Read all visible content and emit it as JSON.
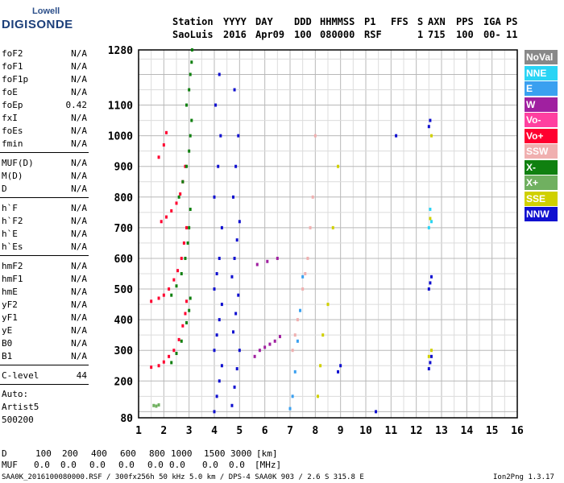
{
  "logo": {
    "line1": "Lowell",
    "line2": "DIGISONDE"
  },
  "header": {
    "labels": [
      "Station",
      "YYYY",
      "DAY",
      "DDD",
      "HHMMSS",
      "P1",
      "FFS",
      "S",
      "AXN",
      "PPS",
      "IGA",
      "PS"
    ],
    "values": [
      "SaoLuis",
      "2016",
      "Apr09",
      "100",
      "080000",
      "RSF",
      "1",
      "715",
      "100",
      "00-",
      "11"
    ]
  },
  "params": [
    {
      "label": "foF2",
      "value": "N/A"
    },
    {
      "label": "foF1",
      "value": "N/A"
    },
    {
      "label": "foF1p",
      "value": "N/A"
    },
    {
      "label": "foE",
      "value": "N/A"
    },
    {
      "label": "foEp",
      "value": "0.42"
    },
    {
      "label": "fxI",
      "value": "N/A"
    },
    {
      "label": "foEs",
      "value": "N/A"
    },
    {
      "label": "fmin",
      "value": "N/A"
    },
    {
      "label": "MUF(D)",
      "value": "N/A"
    },
    {
      "label": "M(D)",
      "value": "N/A"
    },
    {
      "label": "D",
      "value": "N/A"
    },
    {
      "label": "h`F",
      "value": "N/A"
    },
    {
      "label": "h`F2",
      "value": "N/A"
    },
    {
      "label": "h`E",
      "value": "N/A"
    },
    {
      "label": "h`Es",
      "value": "N/A"
    },
    {
      "label": "hmF2",
      "value": "N/A"
    },
    {
      "label": "hmF1",
      "value": "N/A"
    },
    {
      "label": "hmE",
      "value": "N/A"
    },
    {
      "label": "yF2",
      "value": "N/A"
    },
    {
      "label": "yF1",
      "value": "N/A"
    },
    {
      "label": "yE",
      "value": "N/A"
    },
    {
      "label": "B0",
      "value": "N/A"
    },
    {
      "label": "B1",
      "value": "N/A"
    },
    {
      "label": "C-level",
      "value": "44"
    }
  ],
  "auto": {
    "line1": "Auto:",
    "line2": "Artist5",
    "line3": "500200"
  },
  "legend": [
    {
      "label": "NoVal",
      "color": "#888888"
    },
    {
      "label": "NNE",
      "color": "#2ad4f5"
    },
    {
      "label": "E",
      "color": "#3aa0f0"
    },
    {
      "label": "W",
      "color": "#a020a0"
    },
    {
      "label": "Vo-",
      "color": "#ff40a0"
    },
    {
      "label": "Vo+",
      "color": "#ff0030"
    },
    {
      "label": "SSW",
      "color": "#f0b0b0"
    },
    {
      "label": "X-",
      "color": "#108010"
    },
    {
      "label": "X+",
      "color": "#70b060"
    },
    {
      "label": "SSE",
      "color": "#d0d000"
    },
    {
      "label": "NNW",
      "color": "#1010d0"
    }
  ],
  "bottom": {
    "d_label": "D",
    "d_values": [
      "100",
      "200",
      "400",
      "600",
      "800",
      "1000",
      "1500",
      "3000",
      "[km]"
    ],
    "muf_label": "MUF",
    "muf_values": [
      "0.0",
      "0.0",
      "0.0",
      "0.0",
      "0.0",
      "0.0",
      "0.0",
      "0.0",
      "[MHz]"
    ]
  },
  "footer": {
    "left": "SAA0K_2016100080000.RSF / 300fx256h 50 kHz 5.0 km / DPS-4 SAA0K 903 / 2.6 S 315.8 E",
    "right": "Ion2Png 1.3.17"
  },
  "chart_data": {
    "type": "scatter",
    "x_ticks": [
      1,
      2,
      3,
      4,
      5,
      6,
      7,
      8,
      9,
      10,
      11,
      12,
      13,
      14,
      15,
      16
    ],
    "y_ticks": [
      80,
      200,
      300,
      400,
      500,
      600,
      700,
      800,
      900,
      1000,
      1100,
      1280
    ],
    "xlim": [
      1,
      16
    ],
    "ylim": [
      80,
      1280
    ],
    "grid": true,
    "traces": [
      {
        "name": "Vo+",
        "x": [
          1.5,
          1.8,
          2.0,
          2.2,
          2.4,
          2.6,
          2.75,
          2.85,
          2.9
        ],
        "y": [
          245,
          250,
          262,
          280,
          300,
          335,
          380,
          420,
          460
        ]
      },
      {
        "name": "Vo+",
        "x": [
          1.5,
          1.8,
          2.0,
          2.2,
          2.4,
          2.55,
          2.7,
          2.8,
          2.9
        ],
        "y": [
          460,
          470,
          480,
          500,
          530,
          560,
          600,
          650,
          700
        ]
      },
      {
        "name": "Vo+",
        "x": [
          1.9,
          2.1,
          2.3,
          2.5,
          2.65,
          2.75,
          2.85
        ],
        "y": [
          720,
          735,
          755,
          780,
          810,
          850,
          900
        ]
      },
      {
        "name": "Vo+",
        "x": [
          1.8,
          2.0,
          2.1
        ],
        "y": [
          930,
          970,
          1010
        ]
      },
      {
        "name": "X-",
        "x": [
          2.3,
          2.5,
          2.7,
          2.9,
          3.0,
          3.05
        ],
        "y": [
          260,
          290,
          330,
          390,
          430,
          470
        ]
      },
      {
        "name": "X-",
        "x": [
          2.3,
          2.5,
          2.7,
          2.85,
          2.95,
          3.0,
          3.05
        ],
        "y": [
          480,
          510,
          550,
          600,
          650,
          700,
          760
        ]
      },
      {
        "name": "X-",
        "x": [
          2.6,
          2.75,
          2.9,
          3.0,
          3.05,
          3.1
        ],
        "y": [
          800,
          850,
          900,
          950,
          1000,
          1050
        ]
      },
      {
        "name": "X-",
        "x": [
          2.9,
          3.0,
          3.05,
          3.1,
          3.12
        ],
        "y": [
          1100,
          1150,
          1200,
          1240,
          1280
        ]
      },
      {
        "name": "NNW",
        "x": [
          4.0,
          4.1,
          4.2,
          4.3,
          4.0,
          4.1,
          4.2,
          4.3,
          4.0,
          4.1,
          4.2,
          4.3,
          4.0,
          4.15,
          4.25,
          4.05,
          4.2
        ],
        "y": [
          100,
          150,
          200,
          250,
          300,
          350,
          400,
          450,
          500,
          550,
          600,
          700,
          800,
          900,
          1000,
          1100,
          1200
        ]
      },
      {
        "name": "NNW",
        "x": [
          4.7,
          4.8,
          4.9,
          5.0,
          4.75,
          4.85,
          4.95,
          4.7,
          4.8,
          4.9,
          5.0,
          4.75,
          4.85,
          4.95,
          4.8
        ],
        "y": [
          120,
          180,
          240,
          300,
          360,
          420,
          480,
          540,
          600,
          660,
          720,
          800,
          900,
          1000,
          1150
        ]
      },
      {
        "name": "W",
        "x": [
          5.6,
          5.8,
          6.0,
          6.2,
          6.4,
          6.6,
          5.7,
          6.1,
          6.5
        ],
        "y": [
          280,
          300,
          310,
          320,
          330,
          345,
          580,
          590,
          600
        ]
      },
      {
        "name": "SSW",
        "x": [
          7.1,
          7.2,
          7.3,
          7.5,
          7.6,
          7.7,
          7.8,
          7.9,
          8.0
        ],
        "y": [
          300,
          350,
          400,
          500,
          550,
          600,
          700,
          800,
          1000
        ]
      },
      {
        "name": "E",
        "x": [
          7.0,
          7.1,
          7.2,
          7.3,
          7.4,
          7.5
        ],
        "y": [
          110,
          150,
          230,
          330,
          430,
          540
        ]
      },
      {
        "name": "SSE",
        "x": [
          8.1,
          8.2,
          8.3,
          8.5,
          8.7,
          8.9
        ],
        "y": [
          150,
          250,
          350,
          450,
          700,
          900
        ]
      },
      {
        "name": "NNW",
        "x": [
          12.5,
          12.55,
          12.6,
          12.5,
          12.55,
          12.6,
          12.5,
          12.55
        ],
        "y": [
          240,
          260,
          280,
          500,
          520,
          540,
          1030,
          1050
        ]
      },
      {
        "name": "NNE",
        "x": [
          12.5,
          12.6,
          12.55
        ],
        "y": [
          700,
          720,
          760
        ]
      },
      {
        "name": "SSE",
        "x": [
          12.5,
          12.6,
          12.55,
          12.6
        ],
        "y": [
          280,
          300,
          730,
          1000
        ]
      },
      {
        "name": "NNW",
        "x": [
          8.9,
          9.0,
          10.4,
          11.2
        ],
        "y": [
          230,
          250,
          100,
          1000
        ]
      },
      {
        "name": "X+",
        "x": [
          1.6,
          1.7,
          1.8
        ],
        "y": [
          120,
          118,
          122
        ]
      }
    ]
  }
}
